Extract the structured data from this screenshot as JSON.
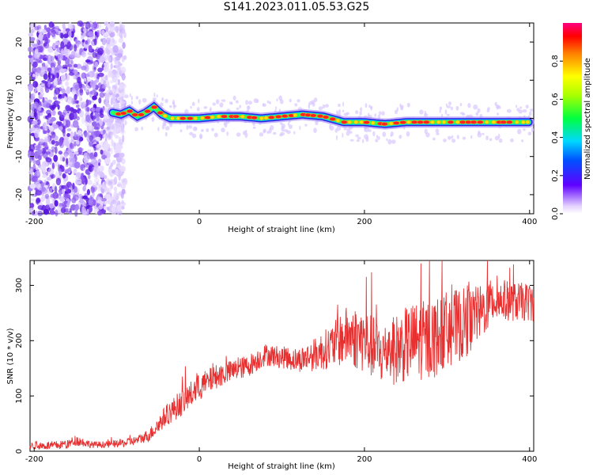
{
  "title": "S141.2023.011.05.53.G25",
  "chart_data": [
    {
      "type": "heatmap",
      "xlabel": "Height of straight line (km)",
      "ylabel": "Frequency (Hz)",
      "xlim": [
        -205,
        405
      ],
      "ylim": [
        -25,
        25
      ],
      "xticks": [
        -200,
        0,
        200,
        400
      ],
      "yticks": [
        -20,
        -10,
        0,
        10,
        20
      ],
      "colorbar": {
        "label": "Normalized spectral amplitude",
        "range": [
          0,
          1
        ],
        "ticks": [
          0.0,
          0.2,
          0.4,
          0.6,
          0.8
        ]
      },
      "ridge": {
        "x": [
          -105,
          -95,
          -85,
          -75,
          -65,
          -55,
          -45,
          -35,
          -20,
          0,
          25,
          50,
          75,
          100,
          125,
          150,
          175,
          200,
          225,
          250,
          275,
          300,
          325,
          350,
          375,
          400
        ],
        "frequency": [
          1.5,
          1.0,
          2.0,
          0.5,
          1.5,
          3.0,
          1.0,
          0.0,
          0.0,
          0.0,
          0.5,
          0.5,
          0.0,
          0.5,
          1.0,
          0.5,
          -1.0,
          -1.0,
          -1.5,
          -1.0,
          -1.0,
          -1.0,
          -1.0,
          -1.0,
          -1.0,
          -1.0
        ]
      },
      "noise_region_x": [
        -205,
        -105
      ]
    },
    {
      "type": "line",
      "xlabel": "Height of straight line (km)",
      "ylabel": "SNR (10 * v/v)",
      "xlim": [
        -205,
        405
      ],
      "ylim": [
        0,
        345
      ],
      "xticks": [
        -200,
        0,
        200,
        400
      ],
      "yticks": [
        0,
        100,
        200,
        300
      ],
      "series": [
        {
          "color": "#e83030",
          "x": [
            -205,
            -180,
            -160,
            -150,
            -130,
            -110,
            -90,
            -75,
            -60,
            -40,
            -20,
            0,
            20,
            40,
            60,
            80,
            100,
            120,
            140,
            160,
            180,
            200,
            220,
            240,
            260,
            280,
            300,
            320,
            340,
            360,
            380,
            405
          ],
          "y": [
            10,
            10,
            12,
            20,
            12,
            12,
            15,
            20,
            30,
            65,
            90,
            115,
            135,
            145,
            155,
            175,
            170,
            165,
            175,
            190,
            210,
            200,
            175,
            185,
            200,
            200,
            220,
            230,
            250,
            275,
            270,
            270
          ],
          "spread": [
            6,
            8,
            8,
            10,
            6,
            6,
            8,
            8,
            12,
            20,
            25,
            25,
            22,
            20,
            20,
            20,
            20,
            22,
            30,
            40,
            55,
            60,
            55,
            65,
            70,
            75,
            70,
            65,
            50,
            40,
            35,
            35
          ]
        }
      ]
    }
  ]
}
